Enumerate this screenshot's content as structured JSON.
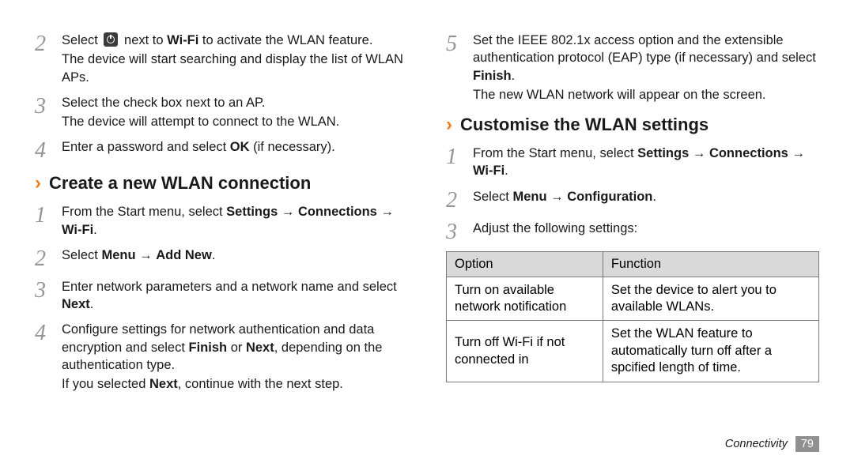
{
  "left": {
    "steps_a": [
      {
        "num": "2",
        "html": "Select {ICON} next to <b>Wi-Fi</b> to activate the WLAN feature.",
        "after": "The device will start searching and display the list of WLAN APs."
      },
      {
        "num": "3",
        "html": "Select the check box next to an AP.",
        "after": "The device will attempt to connect to the WLAN."
      },
      {
        "num": "4",
        "html": "Enter a password and select <b>OK</b> (if necessary)."
      }
    ],
    "heading": "Create a new WLAN connection",
    "steps_b": [
      {
        "num": "1",
        "html": "From the Start menu, select <b>Settings</b> → <b>Connections</b> → <b>Wi-Fi</b>."
      },
      {
        "num": "2",
        "html": "Select <b>Menu</b> → <b>Add New</b>."
      },
      {
        "num": "3",
        "html": "Enter network parameters and a network name and select <b>Next</b>."
      },
      {
        "num": "4",
        "html": "Configure settings for network authentication and data encryption and select <b>Finish</b> or <b>Next</b>, depending on the authentication type.",
        "after": "If you selected <b>Next</b>, continue with the next step."
      }
    ]
  },
  "right": {
    "steps_a": [
      {
        "num": "5",
        "html": "Set the IEEE 802.1x access option and the extensible authentication protocol (EAP) type (if necessary) and select <b>Finish</b>.",
        "after": "The new WLAN network will appear on the screen."
      }
    ],
    "heading": "Customise the WLAN settings",
    "steps_b": [
      {
        "num": "1",
        "html": "From the Start menu, select <b>Settings</b> → <b>Connections</b> → <b>Wi-Fi</b>."
      },
      {
        "num": "2",
        "html": "Select <b>Menu</b> → <b>Configuration</b>."
      },
      {
        "num": "3",
        "html": "Adjust the following settings:"
      }
    ],
    "table": {
      "headers": [
        "Option",
        "Function"
      ],
      "rows": [
        [
          "Turn on available network notification",
          "Set the device to alert you to available WLANs."
        ],
        [
          "Turn off Wi-Fi if not connected in",
          "Set the WLAN feature to automatically turn off after a spcified length of time."
        ]
      ]
    }
  },
  "footer": {
    "section": "Connectivity",
    "page": "79"
  }
}
